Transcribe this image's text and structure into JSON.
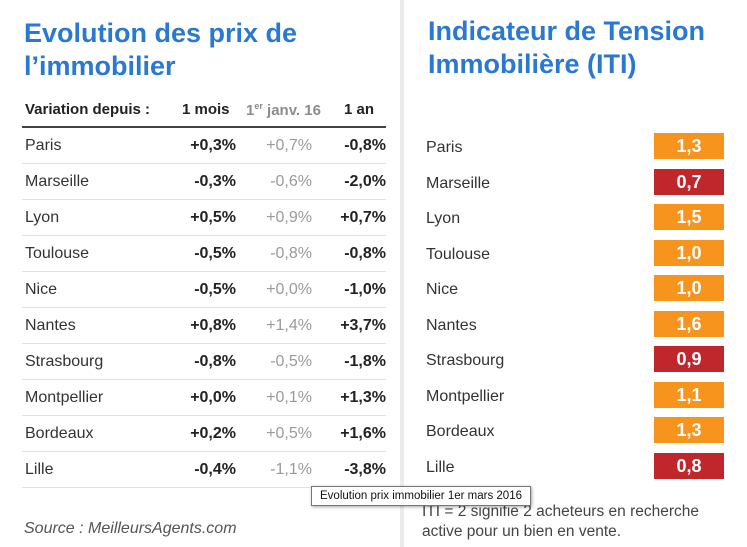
{
  "left": {
    "title": "Evolution des prix de l’immobilier",
    "header": {
      "label": "Variation depuis :",
      "month": "1 mois",
      "jan_prefix": "1",
      "jan_sup": "er",
      "jan_rest": " janv. 16",
      "year": "1 an"
    },
    "rows": [
      {
        "city": "Paris",
        "v1": "+0,3%",
        "v2": "+0,7%",
        "v3": "-0,8%"
      },
      {
        "city": "Marseille",
        "v1": "-0,3%",
        "v2": "-0,6%",
        "v3": "-2,0%"
      },
      {
        "city": "Lyon",
        "v1": "+0,5%",
        "v2": "+0,9%",
        "v3": "+0,7%"
      },
      {
        "city": "Toulouse",
        "v1": "-0,5%",
        "v2": "-0,8%",
        "v3": "-0,8%"
      },
      {
        "city": "Nice",
        "v1": "-0,5%",
        "v2": "+0,0%",
        "v3": "-1,0%"
      },
      {
        "city": "Nantes",
        "v1": "+0,8%",
        "v2": "+1,4%",
        "v3": "+3,7%"
      },
      {
        "city": "Strasbourg",
        "v1": "-0,8%",
        "v2": "-0,5%",
        "v3": "-1,8%"
      },
      {
        "city": "Montpellier",
        "v1": "+0,0%",
        "v2": "+0,1%",
        "v3": "+1,3%"
      },
      {
        "city": "Bordeaux",
        "v1": "+0,2%",
        "v2": "+0,5%",
        "v3": "+1,6%"
      },
      {
        "city": "Lille",
        "v1": "-0,4%",
        "v2": "-1,1%",
        "v3": "-3,8%"
      }
    ],
    "source": "Source : MeilleursAgents.com"
  },
  "right": {
    "title": "Indicateur de Tension Immobilière (ITI)",
    "colors": {
      "orange": "#f7941d",
      "red": "#c0272d"
    },
    "rows": [
      {
        "city": "Paris",
        "value": "1,3",
        "color": "#f7941d"
      },
      {
        "city": "Marseille",
        "value": "0,7",
        "color": "#c0272d"
      },
      {
        "city": "Lyon",
        "value": "1,5",
        "color": "#f7941d"
      },
      {
        "city": "Toulouse",
        "value": "1,0",
        "color": "#f7941d"
      },
      {
        "city": "Nice",
        "value": "1,0",
        "color": "#f7941d"
      },
      {
        "city": "Nantes",
        "value": "1,6",
        "color": "#f7941d"
      },
      {
        "city": "Strasbourg",
        "value": "0,9",
        "color": "#c0272d"
      },
      {
        "city": "Montpellier",
        "value": "1,1",
        "color": "#f7941d"
      },
      {
        "city": "Bordeaux",
        "value": "1,3",
        "color": "#f7941d"
      },
      {
        "city": "Lille",
        "value": "0,8",
        "color": "#c0272d"
      }
    ],
    "note": "ITI = 2 signifie 2 acheteurs en recherche active pour un bien en vente."
  },
  "tooltip": "Evolution prix immobilier 1er mars 2016"
}
